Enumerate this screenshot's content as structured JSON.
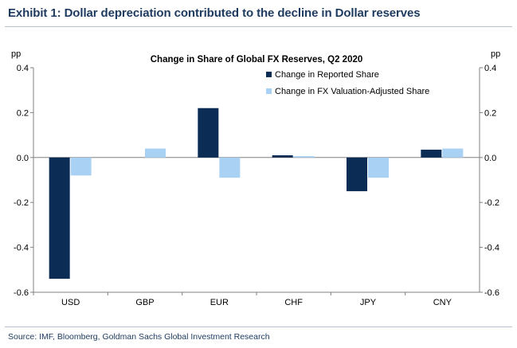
{
  "exhibit_title": "Exhibit 1: Dollar depreciation contributed to the decline in Dollar reserves",
  "source": "Source: IMF, Bloomberg, Goldman Sachs Global Investment Research",
  "colors": {
    "reported": "#0b2c55",
    "adjusted": "#a9d1f3",
    "axis": "#808080",
    "title": "#1d3a5f"
  },
  "chart_data": {
    "type": "bar",
    "title": "Change in Share of Global FX Reserves, Q2 2020",
    "ylabel_left": "pp",
    "ylabel_right": "pp",
    "ylim": [
      -0.6,
      0.4
    ],
    "yticks": [
      0.4,
      0.2,
      0.0,
      -0.2,
      -0.4,
      -0.6
    ],
    "ytick_labels": [
      "0.4",
      "0.2",
      "0.0",
      "-0.2",
      "-0.4",
      "-0.6"
    ],
    "categories": [
      "USD",
      "GBP",
      "EUR",
      "CHF",
      "JPY",
      "CNY"
    ],
    "series": [
      {
        "name": "Change in Reported Share",
        "values": [
          -0.54,
          0.0,
          0.22,
          0.01,
          -0.15,
          0.035
        ]
      },
      {
        "name": "Change in FX Valuation-Adjusted Share",
        "values": [
          -0.08,
          0.04,
          -0.09,
          0.006,
          -0.09,
          0.04
        ]
      }
    ],
    "legend_position": "top-center",
    "grid": false
  }
}
